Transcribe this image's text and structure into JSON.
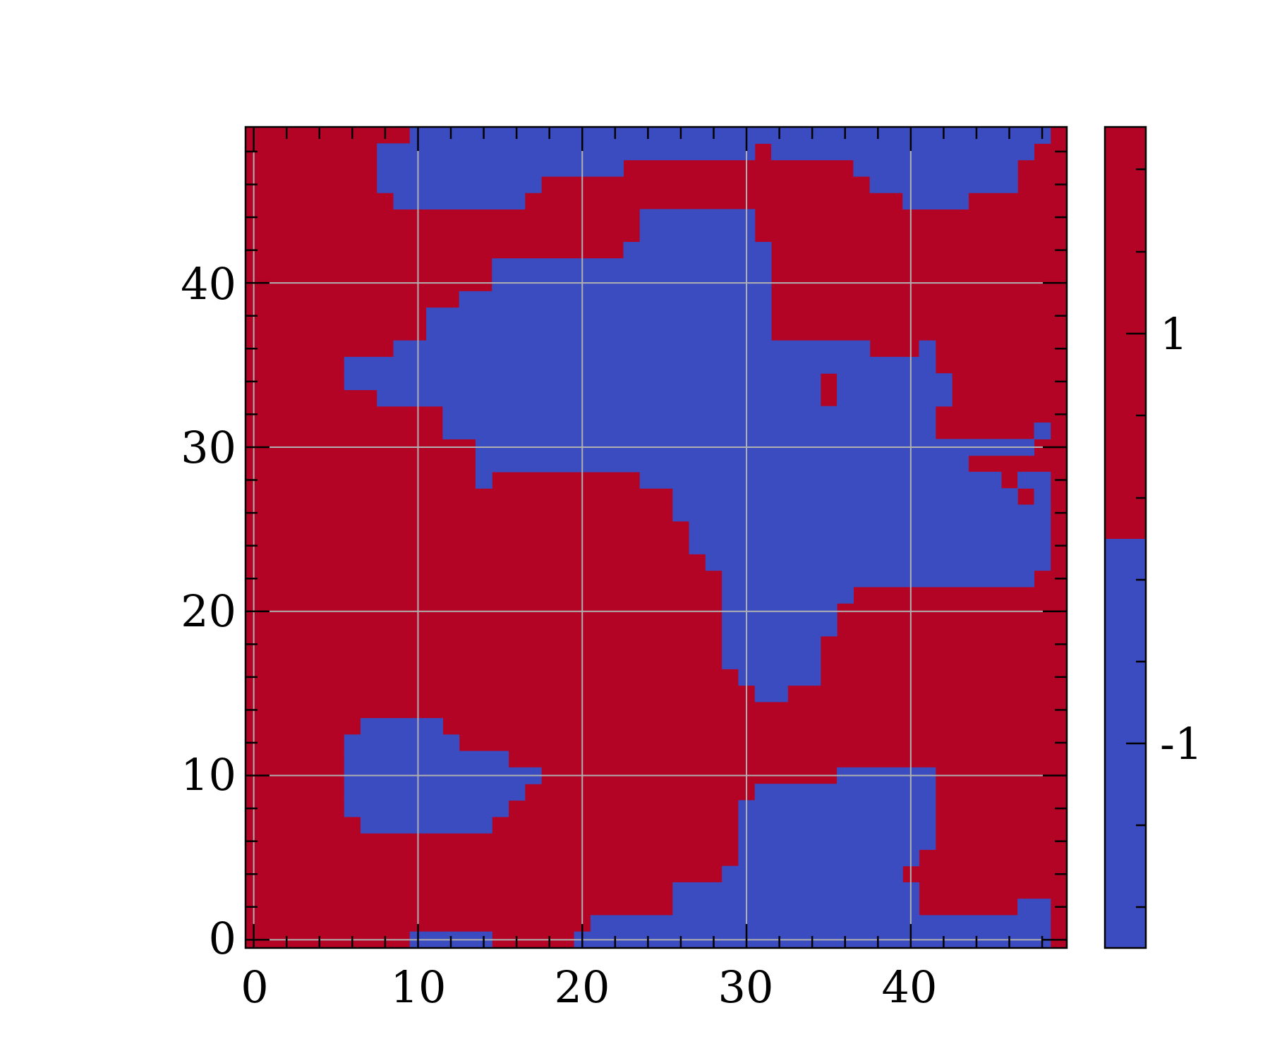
{
  "chart_data": {
    "type": "heatmap",
    "title": "",
    "xlabel": "",
    "ylabel": "",
    "xlim": [
      -0.5,
      49.5
    ],
    "ylim": [
      -0.5,
      49.5
    ],
    "x_ticks": [
      "0",
      "10",
      "20",
      "30",
      "40"
    ],
    "y_ticks": [
      "0",
      "10",
      "20",
      "30",
      "40"
    ],
    "grid": true,
    "colorbar": {
      "ticks": [
        "1",
        "-1"
      ],
      "levels": [
        -1,
        1
      ],
      "colors": {
        "-1": "#3b4cc0",
        "1": "#b40426"
      }
    },
    "value_encoding": "rows listed from y=49 down to y=0; each row lists blue (-1) x-ranges [start, end] inclusive; all other cells are 1",
    "blue_runs": [
      [
        [
          10,
          48
        ]
      ],
      [
        [
          8,
          30
        ],
        [
          32,
          47
        ]
      ],
      [
        [
          8,
          22
        ],
        [
          37,
          46
        ]
      ],
      [
        [
          8,
          17
        ],
        [
          38,
          46
        ]
      ],
      [
        [
          9,
          16
        ],
        [
          40,
          43
        ]
      ],
      [
        [
          24,
          30
        ]
      ],
      [
        [
          24,
          30
        ]
      ],
      [
        [
          23,
          31
        ]
      ],
      [
        [
          15,
          31
        ]
      ],
      [
        [
          15,
          31
        ]
      ],
      [
        [
          13,
          31
        ]
      ],
      [
        [
          11,
          31
        ]
      ],
      [
        [
          11,
          31
        ]
      ],
      [
        [
          9,
          37
        ],
        [
          41,
          41
        ]
      ],
      [
        [
          6,
          41
        ],
        [
          41,
          41
        ]
      ],
      [
        [
          6,
          34
        ],
        [
          36,
          42
        ]
      ],
      [
        [
          8,
          34
        ],
        [
          36,
          42
        ]
      ],
      [
        [
          12,
          41
        ]
      ],
      [
        [
          12,
          41
        ],
        [
          48,
          48
        ]
      ],
      [
        [
          14,
          47
        ]
      ],
      [
        [
          14,
          19
        ],
        [
          20,
          43
        ]
      ],
      [
        [
          14,
          14
        ],
        [
          24,
          45
        ],
        [
          47,
          48
        ]
      ],
      [
        [
          26,
          46
        ],
        [
          48,
          48
        ]
      ],
      [
        [
          26,
          48
        ]
      ],
      [
        [
          27,
          48
        ]
      ],
      [
        [
          27,
          48
        ]
      ],
      [
        [
          28,
          48
        ]
      ],
      [
        [
          29,
          47
        ]
      ],
      [
        [
          29,
          36
        ]
      ],
      [
        [
          29,
          35
        ]
      ],
      [
        [
          29,
          35
        ]
      ],
      [
        [
          29,
          34
        ]
      ],
      [
        [
          29,
          34
        ]
      ],
      [
        [
          30,
          34
        ]
      ],
      [
        [
          31,
          32
        ]
      ],
      [],
      [
        [
          7,
          11
        ]
      ],
      [
        [
          6,
          12
        ]
      ],
      [
        [
          6,
          15
        ]
      ],
      [
        [
          6,
          17
        ],
        [
          36,
          41
        ]
      ],
      [
        [
          6,
          16
        ],
        [
          31,
          41
        ]
      ],
      [
        [
          6,
          15
        ],
        [
          30,
          41
        ]
      ],
      [
        [
          7,
          14
        ],
        [
          30,
          41
        ]
      ],
      [
        [
          30,
          41
        ]
      ],
      [
        [
          30,
          40
        ]
      ],
      [
        [
          29,
          39
        ]
      ],
      [
        [
          26,
          40
        ]
      ],
      [
        [
          26,
          40
        ],
        [
          47,
          48
        ]
      ],
      [
        [
          21,
          48
        ]
      ],
      [
        [
          10,
          14
        ],
        [
          20,
          48
        ]
      ]
    ]
  }
}
